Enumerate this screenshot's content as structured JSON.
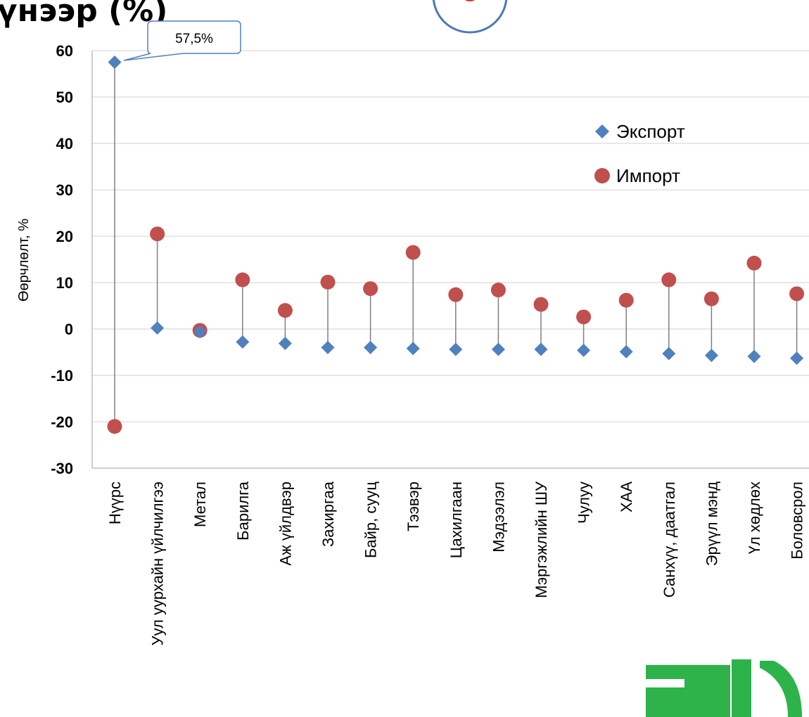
{
  "page": {
    "title": "үнээр (%)"
  },
  "chart_data": {
    "type": "scatter",
    "ylabel": "Өөрчлөлт, %",
    "xlabel": "",
    "ylim": [
      -30,
      60
    ],
    "yticks": [
      -30,
      -20,
      -10,
      0,
      10,
      20,
      30,
      40,
      50,
      60
    ],
    "ytick_labels": [
      "-30",
      "-20",
      "-10",
      "0",
      "10",
      "20",
      "30",
      "40",
      "50",
      "60"
    ],
    "grid": true,
    "legend_position": "right",
    "categories": [
      "Нүүрс",
      "Уул уурхайн үйлчилгээ",
      "Метал",
      "Барилга",
      "Аж үйлдвэр",
      "Захиргаа",
      "Байр, сууц",
      "Тээвэр",
      "Цахилгаан",
      "Мэдээлэл",
      "Мэргэжлийн ШУ",
      "Чулуу",
      "ХАА",
      "Санхүү, даатгал",
      "Эрүүл мэнд",
      "Үл хөдлөх",
      "Боловсрол"
    ],
    "series": [
      {
        "name": "Экспорт",
        "marker": "diamond",
        "color": "#4f81bd",
        "values": [
          57.5,
          0.2,
          -0.6,
          -2.8,
          -3.1,
          -4.0,
          -4.0,
          -4.2,
          -4.4,
          -4.4,
          -4.4,
          -4.6,
          -4.9,
          -5.3,
          -5.7,
          -5.9,
          -6.3
        ]
      },
      {
        "name": "Импорт",
        "marker": "circle",
        "color": "#c0504d",
        "values": [
          -21.0,
          20.5,
          -0.3,
          10.6,
          4.0,
          10.1,
          8.7,
          16.5,
          7.4,
          8.4,
          5.3,
          2.6,
          6.2,
          10.6,
          6.5,
          14.2,
          7.6
        ]
      }
    ],
    "annotations": [
      {
        "text": "57,5%",
        "series": 0,
        "category_index": 0
      }
    ]
  },
  "colors": {
    "export": "#4f81bd",
    "import": "#c0504d",
    "grid": "#d9d9d9",
    "stem": "#808080",
    "badge_ring": "#4a7ab8",
    "badge_dot": "#e03030",
    "logo_green": "#2db34a"
  }
}
